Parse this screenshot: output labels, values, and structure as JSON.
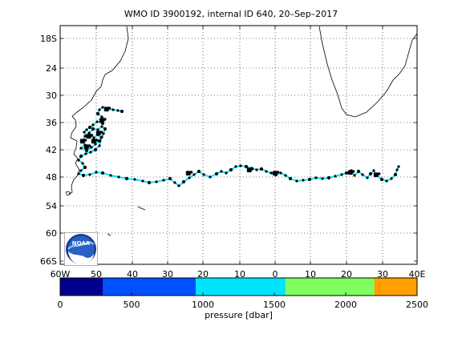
{
  "title": "WMO ID 3900192, internal ID 640, 20–Sep–2017",
  "map": {
    "lon_range": [
      -60,
      40
    ],
    "lat_range": [
      -68,
      -15
    ],
    "lat_ticks": [
      "18S",
      "24",
      "30",
      "36",
      "42",
      "48",
      "54",
      "60",
      "66S"
    ],
    "lon_ticks": [
      "60W",
      "50",
      "40",
      "30",
      "20",
      "10",
      "0",
      "10",
      "20",
      "30",
      "40E"
    ],
    "gridlines": true,
    "track_color": "#00e5ff",
    "point_color": "#000000"
  },
  "colorbar": {
    "ticks": [
      "0",
      "500",
      "1000",
      "1500",
      "2000",
      "2500"
    ],
    "label": "pressure [dbar]",
    "segments": [
      {
        "from": 0,
        "to": 300,
        "color": "#00008f"
      },
      {
        "from": 300,
        "to": 950,
        "color": "#0050ff"
      },
      {
        "from": 950,
        "to": 1580,
        "color": "#00e5ff"
      },
      {
        "from": 1580,
        "to": 2200,
        "color": "#80ff60"
      },
      {
        "from": 2200,
        "to": 2500,
        "color": "#ffa000"
      }
    ]
  },
  "logo": {
    "text": "NOAA"
  }
}
